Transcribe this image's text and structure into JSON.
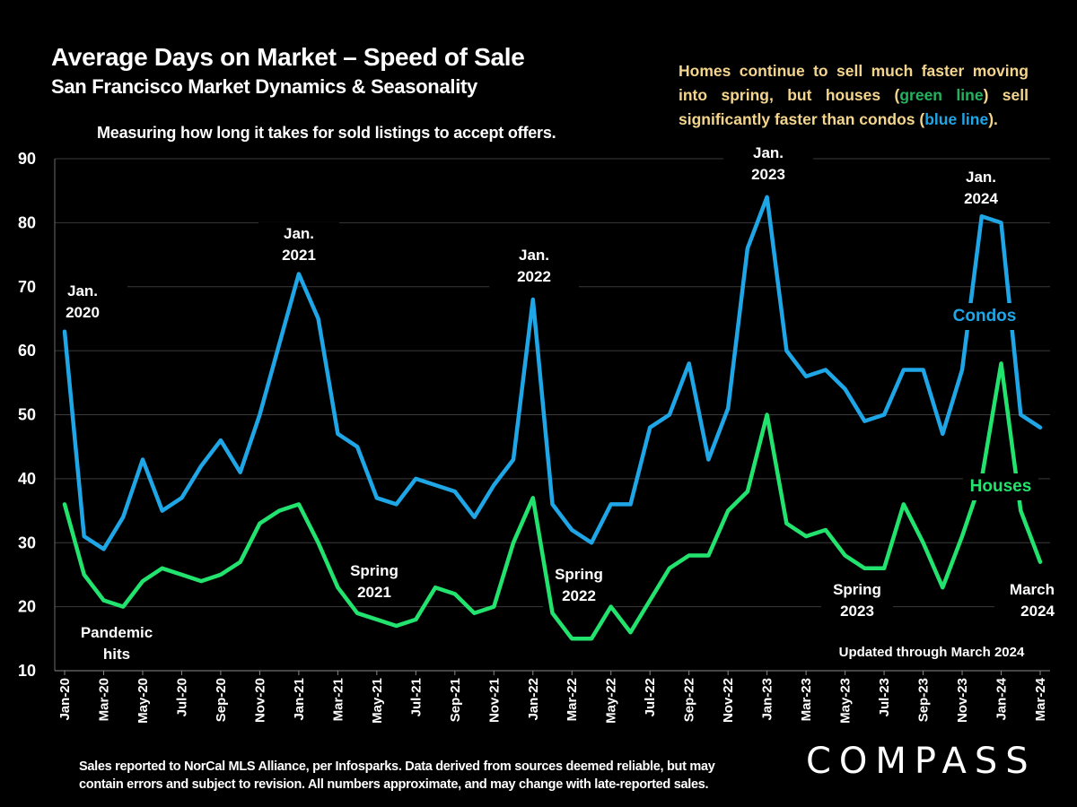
{
  "header": {
    "title": "Average Days on Market – Speed of Sale",
    "subtitle": "San Francisco Market Dynamics & Seasonality",
    "measure_note": "Measuring how long it takes for sold listings to accept offers."
  },
  "side_note": {
    "part1": "Homes continue to sell much faster moving into spring, but houses (",
    "green_text": "green line",
    "part2": ") sell significantly faster than condos (",
    "blue_text": "blue line",
    "part3": ")."
  },
  "footer": {
    "line1": "Sales reported to NorCal MLS Alliance, per Infosparks. Data derived from sources deemed reliable, but may",
    "line2": "contain errors and subject to revision. All numbers approximate, and may change with late-reported sales."
  },
  "logo": "COMPASS",
  "colors": {
    "background": "#000000",
    "condos": "#1ea6e6",
    "houses": "#22e36e",
    "note_text": "#f4d58d",
    "note_green": "#22b360",
    "gridline": "#3a3a3a"
  },
  "chart_data": {
    "type": "line",
    "title": "Average Days on Market – Speed of Sale",
    "xlabel": "",
    "ylabel": "",
    "ylim": [
      10,
      90
    ],
    "yticks": [
      10,
      20,
      30,
      40,
      50,
      60,
      70,
      80,
      90
    ],
    "grid": true,
    "x": [
      "Jan-20",
      "Feb-20",
      "Mar-20",
      "Apr-20",
      "May-20",
      "Jun-20",
      "Jul-20",
      "Aug-20",
      "Sep-20",
      "Oct-20",
      "Nov-20",
      "Dec-20",
      "Jan-21",
      "Feb-21",
      "Mar-21",
      "Apr-21",
      "May-21",
      "Jun-21",
      "Jul-21",
      "Aug-21",
      "Sep-21",
      "Oct-21",
      "Nov-21",
      "Dec-21",
      "Jan-22",
      "Feb-22",
      "Mar-22",
      "Apr-22",
      "May-22",
      "Jun-22",
      "Jul-22",
      "Aug-22",
      "Sep-22",
      "Oct-22",
      "Nov-22",
      "Dec-22",
      "Jan-23",
      "Feb-23",
      "Mar-23",
      "Apr-23",
      "May-23",
      "Jun-23",
      "Jul-23",
      "Aug-23",
      "Sep-23",
      "Oct-23",
      "Nov-23",
      "Dec-23",
      "Jan-24",
      "Feb-24",
      "Mar-24"
    ],
    "xtick_labels": [
      "Jan-20",
      "Mar-20",
      "May-20",
      "Jul-20",
      "Sep-20",
      "Nov-20",
      "Jan-21",
      "Mar-21",
      "May-21",
      "Jul-21",
      "Sep-21",
      "Nov-21",
      "Jan-22",
      "Mar-22",
      "May-22",
      "Jul-22",
      "Sep-22",
      "Nov-22",
      "Jan-23",
      "Mar-23",
      "May-23",
      "Jul-23",
      "Sep-23",
      "Nov-23",
      "Jan-24",
      "Mar-24"
    ],
    "series": [
      {
        "name": "Condos",
        "color": "#1ea6e6",
        "values": [
          63,
          31,
          29,
          34,
          43,
          35,
          37,
          42,
          46,
          41,
          50,
          61,
          72,
          65,
          47,
          45,
          37,
          36,
          40,
          39,
          38,
          34,
          39,
          43,
          68,
          36,
          32,
          30,
          36,
          36,
          48,
          50,
          58,
          43,
          51,
          76,
          84,
          60,
          56,
          57,
          54,
          49,
          50,
          57,
          57,
          47,
          57,
          81,
          80,
          50,
          48
        ]
      },
      {
        "name": "Houses",
        "color": "#22e36e",
        "values": [
          36,
          25,
          21,
          20,
          24,
          26,
          25,
          24,
          25,
          27,
          33,
          35,
          36,
          30,
          23,
          19,
          18,
          17,
          18,
          23,
          22,
          19,
          20,
          30,
          37,
          19,
          15,
          15,
          20,
          16,
          21,
          26,
          28,
          28,
          35,
          38,
          50,
          33,
          31,
          32,
          28,
          26,
          26,
          36,
          30,
          23,
          31,
          40,
          58,
          35,
          27
        ]
      }
    ],
    "annotations": [
      {
        "lines": [
          "Jan.",
          "2020"
        ]
      },
      {
        "lines": [
          "Jan.",
          "2021"
        ]
      },
      {
        "lines": [
          "Jan.",
          "2022"
        ]
      },
      {
        "lines": [
          "Jan.",
          "2023"
        ]
      },
      {
        "lines": [
          "Jan.",
          "2024"
        ]
      },
      {
        "lines": [
          "Pandemic",
          "hits"
        ]
      },
      {
        "lines": [
          "Spring",
          "2021"
        ]
      },
      {
        "lines": [
          "Spring",
          "2022"
        ]
      },
      {
        "lines": [
          "Spring",
          "2023"
        ]
      },
      {
        "lines": [
          "March",
          "2024"
        ]
      },
      {
        "lines": [
          "Updated through March 2024"
        ]
      }
    ],
    "legend": [
      {
        "label": "Condos",
        "placement": "right, inline with condo line"
      },
      {
        "label": "Houses",
        "placement": "right, inline with house line"
      }
    ]
  }
}
